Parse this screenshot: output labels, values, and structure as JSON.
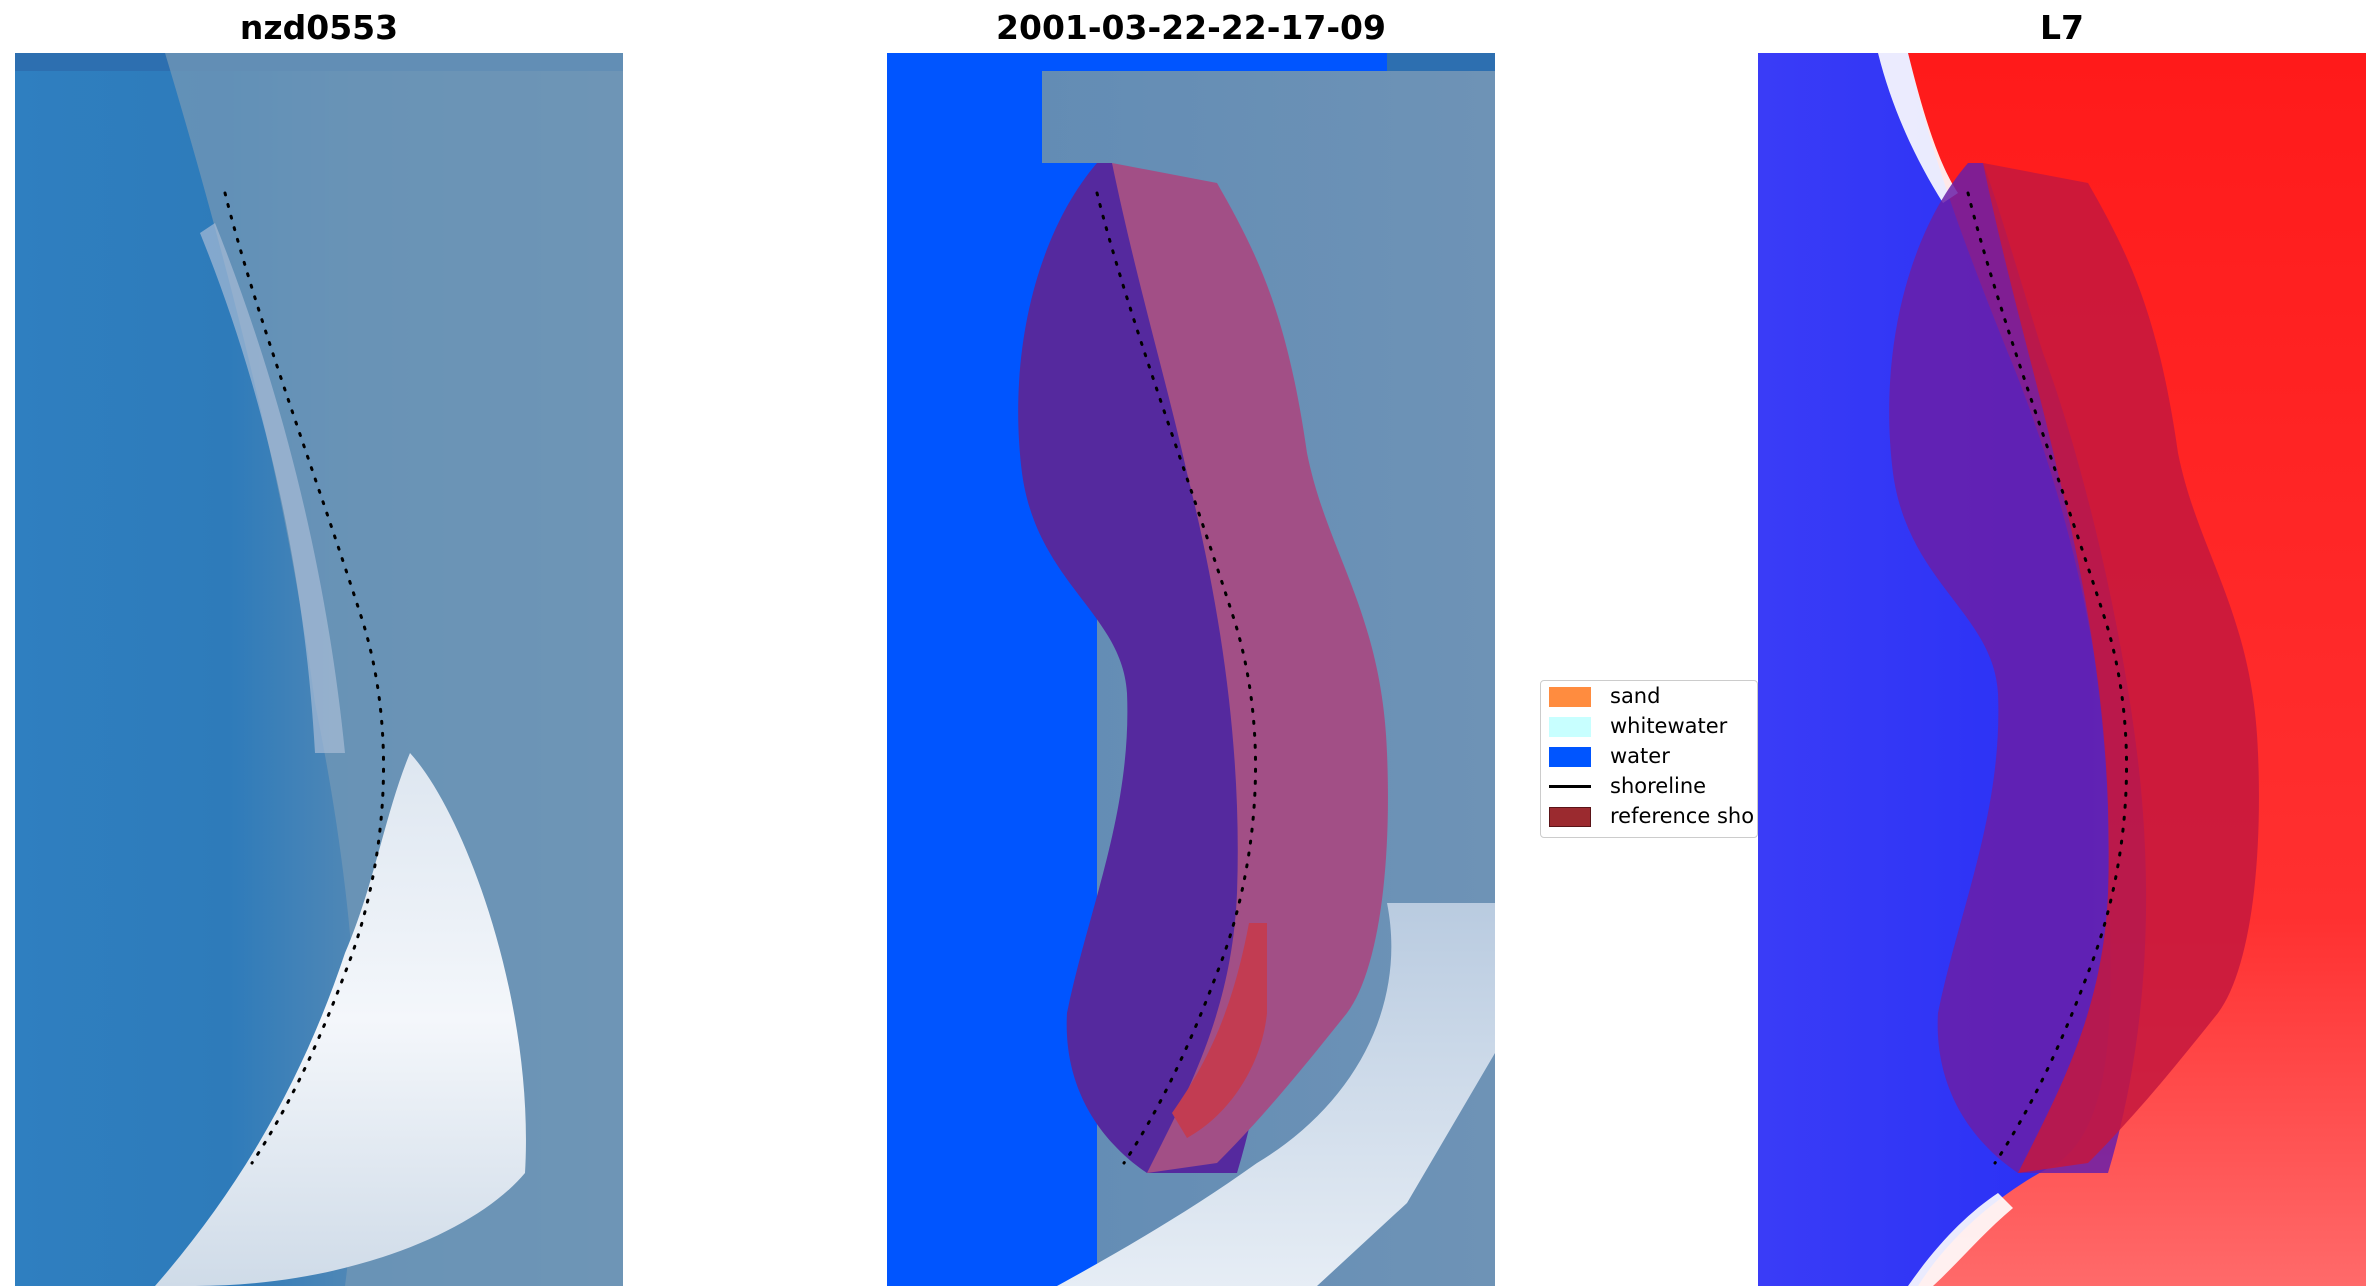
{
  "panels": [
    {
      "title": "nzd0553"
    },
    {
      "title": "2001-03-22-22-17-09"
    },
    {
      "title": "L7"
    }
  ],
  "legend": {
    "items": [
      {
        "label": "sand",
        "kind": "patch",
        "color": "#ff8c3f"
      },
      {
        "label": "whitewater",
        "kind": "patch",
        "color": "#c8ffff"
      },
      {
        "label": "water",
        "kind": "patch",
        "color": "#0055ff"
      },
      {
        "label": "shoreline",
        "kind": "line",
        "color": "#000000"
      },
      {
        "label": "reference sho",
        "kind": "patch",
        "color": "#9b2a2f"
      }
    ]
  },
  "colors": {
    "water_class": "#0055ff",
    "rgb_water": "#2f7fbd",
    "rgb_land": "#6d95b8",
    "whitewater": "#eef2f8",
    "buffer_left": "#55299e",
    "buffer_right": "#a24f86",
    "index_water": "#2a31f5",
    "index_land": "#ff2a2a",
    "shoreline_dots": "#000000"
  }
}
